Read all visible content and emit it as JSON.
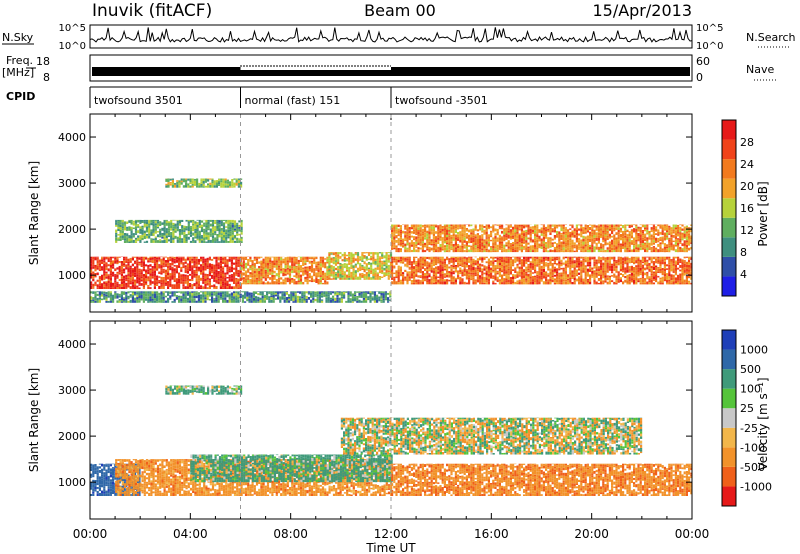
{
  "header": {
    "station": "Inuvik (fitACF)",
    "beam": "Beam 00",
    "date": "15/Apr/2013"
  },
  "sky_panel": {
    "left_label": "N.Sky",
    "left_ticks": [
      "10^5",
      "10^0"
    ],
    "right_ticks": [
      "10^5",
      "10^0"
    ],
    "right_label": "N.Search"
  },
  "freq_panel": {
    "left_label_line1": "Freq.",
    "left_label_line2": "[MHz]",
    "left_ticks": [
      "18",
      "8"
    ],
    "right_ticks": [
      "60",
      "0"
    ],
    "right_label": "Nave"
  },
  "cpid": {
    "label": "CPID",
    "segments": [
      {
        "name": "twofsound 3501",
        "start_hour": 0,
        "end_hour": 6
      },
      {
        "name": "normal (fast) 151",
        "start_hour": 6,
        "end_hour": 12
      },
      {
        "name": "twofsound -3501",
        "start_hour": 12,
        "end_hour": 24
      }
    ]
  },
  "time_axis": {
    "label": "Time UT",
    "ticks": [
      "00:00",
      "04:00",
      "08:00",
      "12:00",
      "16:00",
      "20:00",
      "00:00"
    ]
  },
  "colors": {
    "power_scale": [
      "#1f1fe6",
      "#2f4fa8",
      "#3f8f7f",
      "#5fae5f",
      "#b6d23a",
      "#f2a22a",
      "#f27a1e",
      "#f0431a",
      "#e61919"
    ],
    "velocity_scale": [
      "#1f3fb8",
      "#2f68a8",
      "#3f9a7a",
      "#55c43a",
      "#c8c8c8",
      "#f2b64a",
      "#f2922a",
      "#f0601a",
      "#e61919"
    ]
  },
  "chart_data": [
    {
      "type": "heatmap",
      "title": "Power",
      "xlabel": "Time UT",
      "ylabel": "Slant Range [km]",
      "xlim_hours": [
        0,
        24
      ],
      "ylim_km": [
        200,
        4500
      ],
      "y_ticks": [
        "1000",
        "2000",
        "3000",
        "4000"
      ],
      "colorbar": {
        "label": "Power [dB]",
        "range": [
          0,
          32
        ],
        "ticks": [
          "4",
          "8",
          "12",
          "16",
          "20",
          "24",
          "28"
        ]
      },
      "bands": [
        {
          "t0": 0,
          "t1": 6,
          "r0": 700,
          "r1": 1400,
          "value": 28
        },
        {
          "t0": 6,
          "t1": 9.5,
          "r0": 800,
          "r1": 1400,
          "value": 22
        },
        {
          "t0": 9.5,
          "t1": 12,
          "r0": 900,
          "r1": 1500,
          "value": 18
        },
        {
          "t0": 12,
          "t1": 24,
          "r0": 800,
          "r1": 1400,
          "value": 24
        },
        {
          "t0": 12,
          "t1": 24,
          "r0": 1500,
          "r1": 2100,
          "value": 22
        },
        {
          "t0": 1,
          "t1": 6,
          "r0": 1700,
          "r1": 2200,
          "value": 12
        },
        {
          "t0": 3,
          "t1": 6,
          "r0": 2900,
          "r1": 3100,
          "value": 14
        },
        {
          "t0": 0,
          "t1": 12,
          "r0": 400,
          "r1": 650,
          "value": 10
        }
      ]
    },
    {
      "type": "heatmap",
      "title": "Velocity",
      "xlabel": "Time UT",
      "ylabel": "Slant Range [km]",
      "xlim_hours": [
        0,
        24
      ],
      "ylim_km": [
        200,
        4500
      ],
      "y_ticks": [
        "1000",
        "2000",
        "3000",
        "4000"
      ],
      "colorbar": {
        "label": "Velocity [m s⁻¹]",
        "ticks": [
          "1000",
          "500",
          "100",
          "25",
          "-25",
          "-100",
          "-500",
          "-1000"
        ]
      },
      "bands": [
        {
          "t0": 0,
          "t1": 2,
          "r0": 700,
          "r1": 1400,
          "value": 800
        },
        {
          "t0": 1,
          "t1": 12,
          "r0": 700,
          "r1": 1500,
          "value": -300
        },
        {
          "t0": 4,
          "t1": 12,
          "r0": 1000,
          "r1": 1600,
          "value": 200
        },
        {
          "t0": 10,
          "t1": 22,
          "r0": 1600,
          "r1": 2400,
          "value": 0
        },
        {
          "t0": 12,
          "t1": 24,
          "r0": 700,
          "r1": 1400,
          "value": -400
        },
        {
          "t0": 3,
          "t1": 6,
          "r0": 2900,
          "r1": 3100,
          "value": 150
        }
      ]
    }
  ]
}
